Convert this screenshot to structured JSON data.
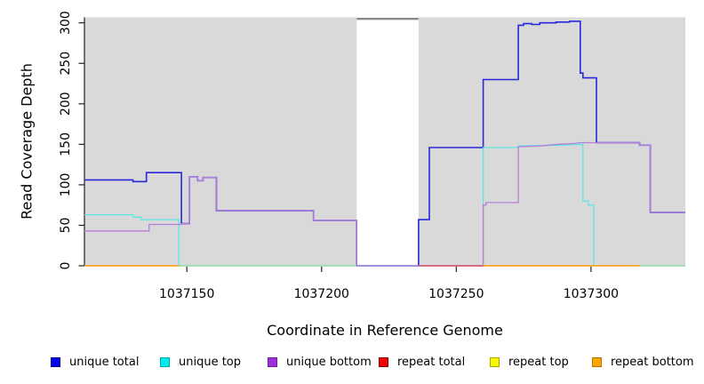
{
  "chart_data": {
    "type": "line",
    "subtype": "step-coverage-plot",
    "title": "",
    "xlabel": "Coordinate in Reference Genome",
    "ylabel": "Read Coverage Depth",
    "xlim": [
      1037112,
      1037335
    ],
    "ylim": [
      0,
      307
    ],
    "x_ticks": [
      1037150,
      1037200,
      1037250,
      1037300
    ],
    "y_ticks": [
      0,
      50,
      100,
      150,
      200,
      250,
      300
    ],
    "grid": false,
    "plot_bg": "#d9d9d9",
    "page_bg": "#ffffff",
    "gap_region": {
      "from": 1037213,
      "to": 1037236,
      "fill": "#ffffff",
      "top_line_color": "#8c8c8c",
      "top_line_value": 305
    },
    "legend_position": "bottom",
    "series": [
      {
        "name": "unique total",
        "color": "#2828da",
        "width": 1.6,
        "legend_fill": "#0000e8",
        "legend_border": "#0000a0",
        "segments": [
          [
            [
              1037112,
              106
            ],
            [
              1037130,
              106
            ],
            [
              1037130,
              104
            ],
            [
              1037135,
              104
            ],
            [
              1037135,
              115
            ],
            [
              1037148,
              115
            ],
            [
              1037148,
              52
            ],
            [
              1037151,
              52
            ],
            [
              1037151,
              110
            ],
            [
              1037154,
              110
            ],
            [
              1037154,
              105
            ],
            [
              1037156,
              105
            ],
            [
              1037156,
              109
            ],
            [
              1037161,
              109
            ],
            [
              1037161,
              68
            ],
            [
              1037197,
              68
            ],
            [
              1037197,
              56
            ],
            [
              1037213,
              56
            ],
            [
              1037213,
              0
            ],
            [
              1037236,
              0
            ],
            [
              1037236,
              57
            ],
            [
              1037240,
              57
            ],
            [
              1037240,
              146
            ],
            [
              1037260,
              146
            ],
            [
              1037260,
              230
            ],
            [
              1037273,
              230
            ],
            [
              1037273,
              297
            ],
            [
              1037275,
              297
            ],
            [
              1037275,
              299
            ],
            [
              1037278,
              299
            ],
            [
              1037278,
              298
            ],
            [
              1037281,
              298
            ],
            [
              1037281,
              300
            ],
            [
              1037287,
              300
            ],
            [
              1037287,
              301
            ],
            [
              1037292,
              301
            ],
            [
              1037292,
              302
            ],
            [
              1037296,
              302
            ],
            [
              1037296,
              238
            ],
            [
              1037297,
              238
            ],
            [
              1037297,
              232
            ],
            [
              1037302,
              232
            ],
            [
              1037302,
              152
            ],
            [
              1037318,
              152
            ],
            [
              1037318,
              149
            ],
            [
              1037322,
              149
            ],
            [
              1037322,
              66
            ],
            [
              1037335,
              66
            ]
          ]
        ]
      },
      {
        "name": "unique top",
        "color": "#5fe6e6",
        "width": 1.3,
        "legend_fill": "#00eded",
        "legend_border": "#00a5a5",
        "segments": [
          [
            [
              1037112,
              63
            ],
            [
              1037130,
              63
            ],
            [
              1037130,
              60
            ],
            [
              1037133,
              60
            ],
            [
              1037133,
              57
            ],
            [
              1037147,
              57
            ],
            [
              1037147,
              0
            ],
            [
              1037260,
              0
            ],
            [
              1037260,
              146
            ],
            [
              1037273,
              146
            ],
            [
              1037273,
              148
            ],
            [
              1037290,
              149
            ],
            [
              1037297,
              150
            ],
            [
              1037297,
              80
            ],
            [
              1037299,
              80
            ],
            [
              1037299,
              75
            ],
            [
              1037301,
              75
            ],
            [
              1037301,
              0
            ],
            [
              1037335,
              0
            ]
          ]
        ]
      },
      {
        "name": "unique bottom",
        "color": "#b57fd9",
        "width": 1.3,
        "legend_fill": "#9d2fe0",
        "legend_border": "#6c20a0",
        "segments": [
          [
            [
              1037112,
              43
            ],
            [
              1037136,
              43
            ],
            [
              1037136,
              51
            ],
            [
              1037148,
              51
            ],
            [
              1037148,
              52
            ],
            [
              1037151,
              52
            ],
            [
              1037151,
              110
            ],
            [
              1037154,
              110
            ],
            [
              1037154,
              105
            ],
            [
              1037156,
              105
            ],
            [
              1037156,
              109
            ],
            [
              1037161,
              109
            ],
            [
              1037161,
              68
            ],
            [
              1037197,
              68
            ],
            [
              1037197,
              56
            ],
            [
              1037213,
              56
            ],
            [
              1037213,
              0
            ],
            [
              1037260,
              0
            ],
            [
              1037260,
              75
            ],
            [
              1037261,
              75
            ],
            [
              1037261,
              78
            ],
            [
              1037273,
              78
            ],
            [
              1037273,
              147
            ],
            [
              1037281,
              148
            ],
            [
              1037288,
              150
            ],
            [
              1037294,
              151
            ],
            [
              1037296,
              152
            ],
            [
              1037318,
              152
            ],
            [
              1037318,
              149
            ],
            [
              1037322,
              149
            ],
            [
              1037322,
              66
            ],
            [
              1037335,
              66
            ]
          ]
        ]
      },
      {
        "name": "repeat total",
        "color": "#d84a60",
        "width": 1.5,
        "legend_fill": "#f00000",
        "legend_border": "#900000",
        "segments": [
          [
            [
              1037236,
              0
            ],
            [
              1037260,
              0
            ]
          ]
        ]
      },
      {
        "name": "repeat top",
        "color": "#f2f200",
        "width": 1.3,
        "legend_fill": "#f8f800",
        "legend_border": "#a8a800",
        "segments": []
      },
      {
        "name": "repeat bottom",
        "color": "#ffa51f",
        "width": 1.8,
        "legend_fill": "#ffa500",
        "legend_border": "#b37400",
        "segments": [
          [
            [
              1037112,
              0
            ],
            [
              1037147,
              0
            ]
          ],
          [
            [
              1037260,
              0
            ],
            [
              1037318,
              0
            ]
          ]
        ]
      }
    ],
    "zero_overlap_segments": {
      "note": "pale green where unique top and repeat top/bottom lines coincide at zero coverage",
      "color": "#93d9a2",
      "width": 1.5,
      "ranges": [
        [
          1037147,
          1037213
        ],
        [
          1037318,
          1037335
        ]
      ]
    },
    "axis_color": "#222222"
  }
}
